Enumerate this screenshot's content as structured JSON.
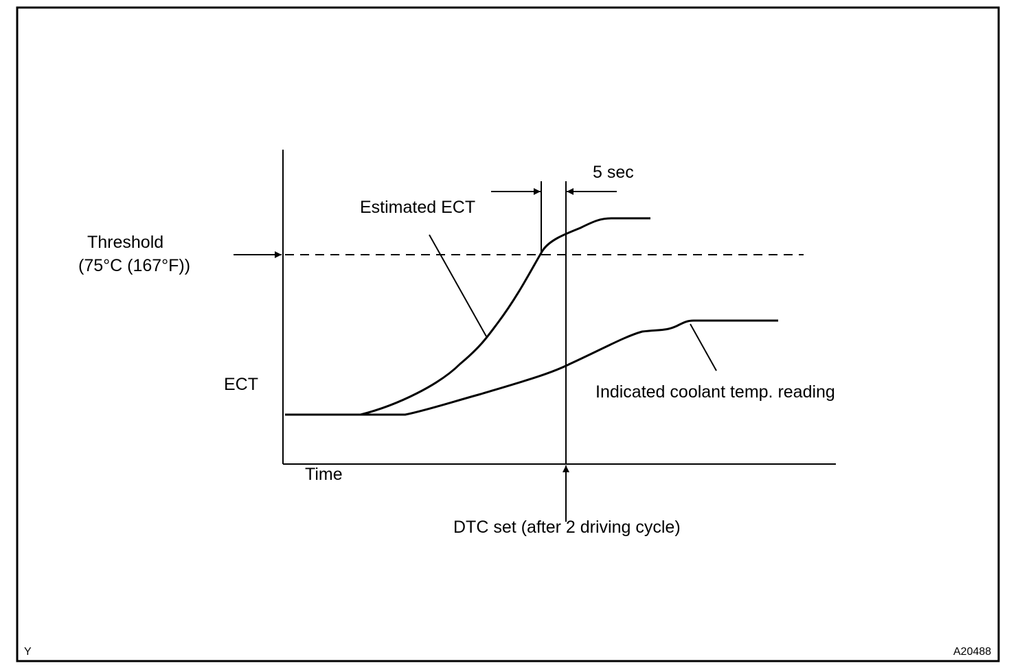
{
  "diagram": {
    "y_axis_label": "ECT",
    "x_axis_label": "Time",
    "threshold_label_line1": "Threshold",
    "threshold_label_line2": "(75°C (167°F))",
    "estimated_label": "Estimated ECT",
    "indicated_label": "Indicated coolant temp. reading",
    "interval_label": "5 sec",
    "dtc_label": "DTC set (after 2 driving cycle)",
    "corner_left": "Y",
    "figure_id": "A20488"
  }
}
